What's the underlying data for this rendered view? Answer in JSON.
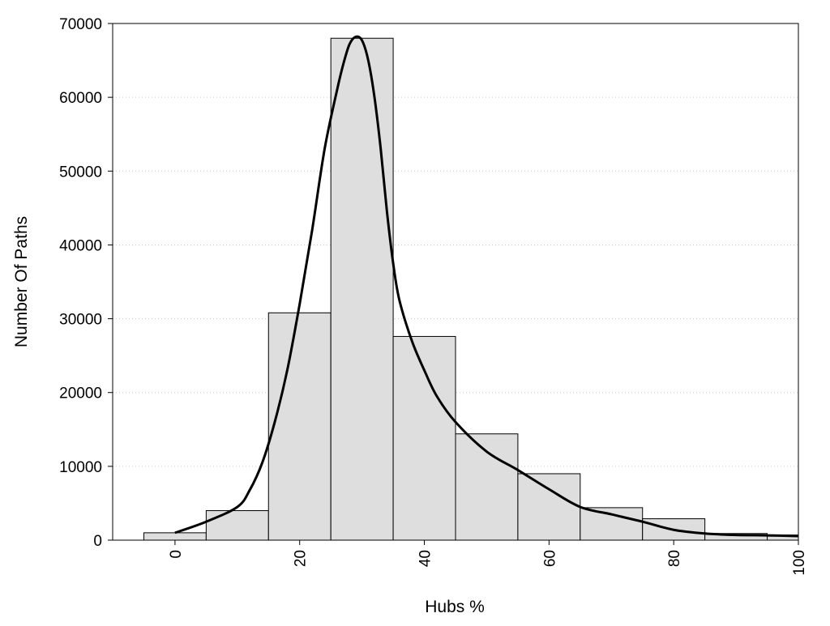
{
  "chart_data": {
    "type": "bar",
    "title": "",
    "xlabel": "Hubs %",
    "ylabel": "Number Of Paths",
    "xlim": [
      -10,
      100
    ],
    "ylim": [
      0,
      70000
    ],
    "grid": "horizontal dotted",
    "bin_width": 10,
    "bins": [
      {
        "center": 0,
        "value": 1000
      },
      {
        "center": 10,
        "value": 4000
      },
      {
        "center": 20,
        "value": 30800
      },
      {
        "center": 30,
        "value": 68000
      },
      {
        "center": 40,
        "value": 27600
      },
      {
        "center": 50,
        "value": 14400
      },
      {
        "center": 60,
        "value": 9000
      },
      {
        "center": 70,
        "value": 4400
      },
      {
        "center": 80,
        "value": 2900
      },
      {
        "center": 90,
        "value": 900
      },
      {
        "center": 100,
        "value": 700
      }
    ],
    "x_ticks": [
      0,
      20,
      40,
      60,
      80,
      100
    ],
    "y_ticks": [
      0,
      10000,
      20000,
      30000,
      40000,
      50000,
      60000,
      70000
    ],
    "curve": {
      "x": [
        0,
        5,
        10,
        12,
        14,
        16,
        18,
        20,
        22,
        24,
        26,
        27,
        28,
        29,
        30,
        31,
        32,
        33,
        34,
        35,
        36,
        38,
        40,
        42,
        45,
        50,
        55,
        60,
        65,
        70,
        75,
        80,
        85,
        90,
        95,
        100
      ],
      "y": [
        1000,
        2500,
        4500,
        6800,
        10500,
        16000,
        23000,
        32000,
        42000,
        53000,
        61000,
        64500,
        67200,
        68200,
        67700,
        65000,
        60000,
        53000,
        44500,
        37500,
        32500,
        27000,
        23000,
        19500,
        16000,
        12000,
        9500,
        6900,
        4500,
        3500,
        2500,
        1400,
        900,
        700,
        650,
        550
      ]
    },
    "bar_fill": "#dedede",
    "bar_stroke": "#000000",
    "curve_color": "#000000",
    "grid_color": "#c8c8c8"
  }
}
